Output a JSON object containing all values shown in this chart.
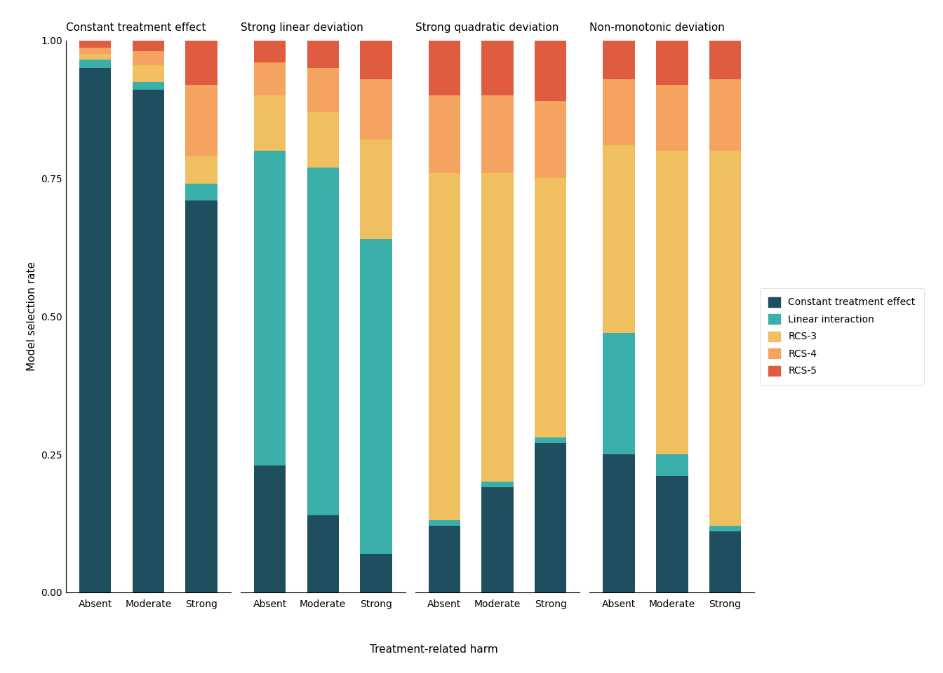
{
  "facets": [
    "Constant treatment effect",
    "Strong linear deviation",
    "Strong quadratic deviation",
    "Non-monotonic deviation"
  ],
  "groups": [
    "Absent",
    "Moderate",
    "Strong"
  ],
  "models": [
    "Constant treatment effect",
    "Linear interaction",
    "RCS-3",
    "RCS-4",
    "RCS-5"
  ],
  "colors": [
    "#1f4e5f",
    "#3aafa9",
    "#f0c060",
    "#f4a460",
    "#e05c40"
  ],
  "data": {
    "Constant treatment effect": {
      "Absent": [
        0.95,
        0.015,
        0.01,
        0.012,
        0.013
      ],
      "Moderate": [
        0.91,
        0.015,
        0.03,
        0.025,
        0.02
      ],
      "Strong": [
        0.71,
        0.03,
        0.05,
        0.13,
        0.08
      ]
    },
    "Strong linear deviation": {
      "Absent": [
        0.23,
        0.57,
        0.1,
        0.06,
        0.04
      ],
      "Moderate": [
        0.14,
        0.63,
        0.1,
        0.08,
        0.05
      ],
      "Strong": [
        0.07,
        0.57,
        0.18,
        0.11,
        0.07
      ]
    },
    "Strong quadratic deviation": {
      "Absent": [
        0.12,
        0.01,
        0.63,
        0.14,
        0.1
      ],
      "Moderate": [
        0.19,
        0.01,
        0.56,
        0.14,
        0.1
      ],
      "Strong": [
        0.27,
        0.01,
        0.47,
        0.14,
        0.11
      ]
    },
    "Non-monotonic deviation": {
      "Absent": [
        0.25,
        0.22,
        0.34,
        0.12,
        0.07
      ],
      "Moderate": [
        0.21,
        0.04,
        0.55,
        0.12,
        0.08
      ],
      "Strong": [
        0.11,
        0.01,
        0.68,
        0.13,
        0.07
      ]
    }
  },
  "ylabel": "Model selection rate",
  "xlabel": "Treatment-related harm",
  "ylim": [
    0.0,
    1.0
  ],
  "yticks": [
    0.0,
    0.25,
    0.5,
    0.75,
    1.0
  ],
  "background_color": "#ffffff"
}
